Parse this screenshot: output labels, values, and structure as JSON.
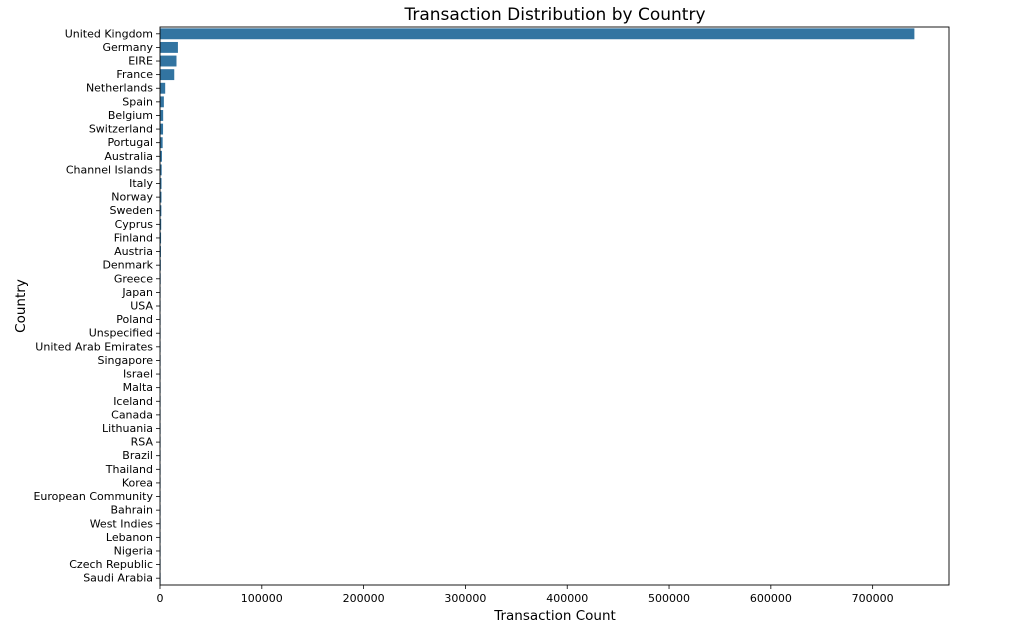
{
  "chart_data": {
    "type": "bar",
    "orientation": "horizontal",
    "title": "Transaction Distribution by Country",
    "xlabel": "Transaction Count",
    "ylabel": "Country",
    "xlim": [
      0,
      775000
    ],
    "xticks": [
      0,
      100000,
      200000,
      300000,
      400000,
      500000,
      600000,
      700000
    ],
    "grid": false,
    "bar_color": "#3274a1",
    "categories": [
      "United Kingdom",
      "Germany",
      "EIRE",
      "France",
      "Netherlands",
      "Spain",
      "Belgium",
      "Switzerland",
      "Portugal",
      "Australia",
      "Channel Islands",
      "Italy",
      "Norway",
      "Sweden",
      "Cyprus",
      "Finland",
      "Austria",
      "Denmark",
      "Greece",
      "Japan",
      "USA",
      "Poland",
      "Unspecified",
      "United Arab Emirates",
      "Singapore",
      "Israel",
      "Malta",
      "Iceland",
      "Canada",
      "Lithuania",
      "RSA",
      "Brazil",
      "Thailand",
      "Korea",
      "European Community",
      "Bahrain",
      "West Indies",
      "Lebanon",
      "Nigeria",
      "Czech Republic",
      "Saudi Arabia"
    ],
    "values": [
      741000,
      17600,
      16200,
      14000,
      5100,
      3800,
      3100,
      3000,
      2600,
      1900,
      1650,
      1500,
      1450,
      1350,
      1200,
      1050,
      940,
      820,
      680,
      580,
      540,
      530,
      520,
      420,
      350,
      320,
      300,
      250,
      230,
      160,
      120,
      94,
      80,
      60,
      58,
      50,
      50,
      45,
      30,
      25,
      10
    ]
  }
}
